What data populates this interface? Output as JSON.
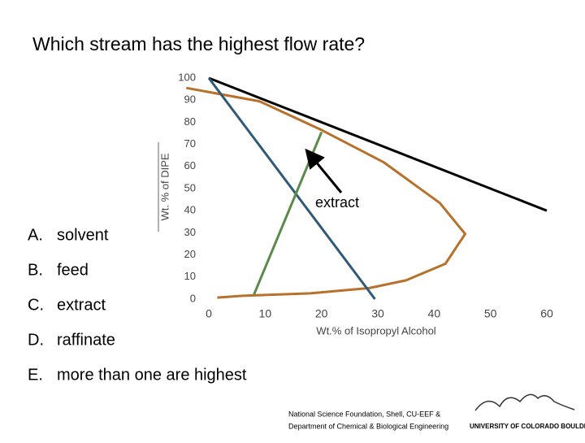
{
  "question": "Which stream has the highest flow rate?",
  "choices": [
    {
      "letter": "A.",
      "text": "solvent"
    },
    {
      "letter": "B.",
      "text": "feed"
    },
    {
      "letter": "C.",
      "text": "extract"
    },
    {
      "letter": "D.",
      "text": "raffinate"
    },
    {
      "letter": "E.",
      "text": "more than one are highest"
    }
  ],
  "footer": [
    "National Science Foundation, Shell, CU-EEF &",
    "Department of Chemical & Biological Engineering",
    "UNIVERSITY OF COLORADO BOULDER"
  ],
  "chart_data": {
    "type": "line",
    "x_label": "Wt.% of Isopropyl Alcohol",
    "y_label": "Wt. % of DIPE",
    "annotation": "extract",
    "xlim": [
      0,
      60
    ],
    "ylim": [
      0,
      100
    ],
    "xticks": [
      0,
      10,
      20,
      30,
      40,
      50,
      60
    ],
    "yticks": [
      0,
      10,
      20,
      30,
      40,
      50,
      60,
      70,
      80,
      90,
      100
    ],
    "grid": false,
    "series": [
      {
        "color": "#b8712a",
        "x": [
          -4,
          9,
          20,
          31,
          41,
          45.5,
          42,
          35,
          28.5,
          18,
          6,
          1.5
        ],
        "values": [
          95.5,
          89.5,
          76.5,
          62,
          43.5,
          29.5,
          16,
          8.5,
          5,
          2.6,
          1.5,
          0.7
        ]
      },
      {
        "color": "#000000",
        "x": [
          0,
          60
        ],
        "values": [
          100,
          40
        ]
      },
      {
        "color": "#2e5a78",
        "x": [
          0,
          29.5
        ],
        "values": [
          100,
          0
        ]
      },
      {
        "color": "#5b8a4a",
        "x": [
          8,
          20
        ],
        "values": [
          2,
          75.5
        ]
      }
    ]
  }
}
